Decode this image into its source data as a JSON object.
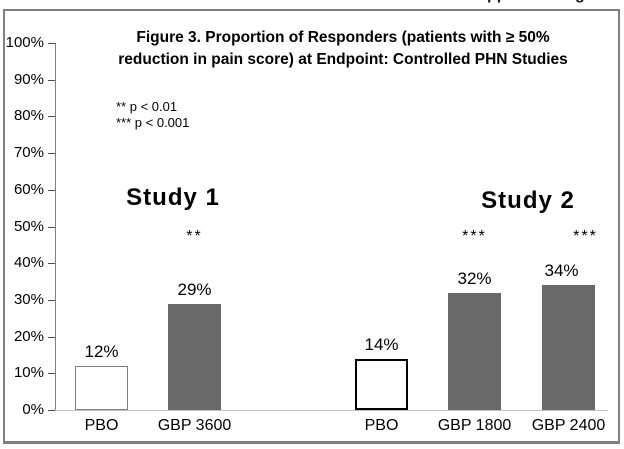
{
  "figure": {
    "title_line1": "Figure 3. Proportion of Responders (patients with ≥ 50%",
    "title_line2": "reduction in pain score) at Endpoint: Controlled PHN Studies",
    "cut_text_fragments": {
      "left": "pp",
      "right": "g"
    }
  },
  "chart_data": {
    "type": "bar",
    "title": "Figure 3. Proportion of Responders (patients with ≥ 50% reduction in pain score) at Endpoint: Controlled PHN Studies",
    "xlabel": "",
    "ylabel": "",
    "ylim": [
      0,
      100
    ],
    "grid": false,
    "ytick_labels": [
      "0%",
      "10%",
      "20%",
      "30%",
      "40%",
      "50%",
      "60%",
      "70%",
      "80%",
      "90%",
      "100%"
    ],
    "annotations": [
      "** p < 0.01",
      "*** p < 0.001"
    ],
    "legend_position": "none",
    "groups": [
      {
        "name": "Study 1",
        "bars": [
          {
            "category": "PBO",
            "value_pct": 12,
            "label": "12%",
            "significance": "",
            "fill": "white"
          },
          {
            "category": "GBP 3600",
            "value_pct": 29,
            "label": "29%",
            "significance": "**",
            "fill": "gray"
          }
        ]
      },
      {
        "name": "Study 2",
        "bars": [
          {
            "category": "PBO",
            "value_pct": 14,
            "label": "14%",
            "significance": "",
            "fill": "white"
          },
          {
            "category": "GBP 1800",
            "value_pct": 32,
            "label": "32%",
            "significance": "***",
            "fill": "gray"
          },
          {
            "category": "GBP 2400",
            "value_pct": 34,
            "label": "34%",
            "significance": "***",
            "fill": "gray"
          }
        ]
      }
    ],
    "colors": {
      "bar_gray": "#696969",
      "pbo_fill": "#ffffff",
      "pbo_border_study1": "#7f7f7f",
      "pbo_border_study2": "#000000",
      "figure_border": "#808080",
      "axis_line": "#808080",
      "baseline": "#c3c3c3",
      "text": "#000000"
    }
  }
}
